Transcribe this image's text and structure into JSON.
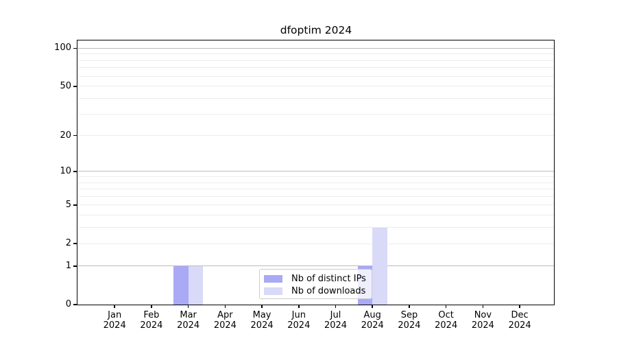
{
  "chart_data": {
    "type": "bar",
    "title": "dfoptim 2024",
    "categories": [
      "Jan",
      "Feb",
      "Mar",
      "Apr",
      "May",
      "Jun",
      "Jul",
      "Aug",
      "Sep",
      "Oct",
      "Nov",
      "Dec"
    ],
    "year": "2024",
    "series": [
      {
        "name": "Nb of distinct IPs",
        "color": "#a9a9f5",
        "values": [
          0,
          0,
          1,
          0,
          0,
          0,
          0,
          1,
          0,
          0,
          0,
          0
        ]
      },
      {
        "name": "Nb of downloads",
        "color": "#d9d9f8",
        "values": [
          0,
          0,
          1,
          0,
          0,
          0,
          0,
          3,
          0,
          0,
          0,
          0
        ]
      }
    ],
    "y_axis": {
      "tick_values": [
        0,
        1,
        2,
        5,
        10,
        20,
        50,
        100
      ],
      "tick_labels": [
        "0",
        "1",
        "2",
        "5",
        "10",
        "20",
        "50",
        "100"
      ],
      "scale": "log10(1+v)",
      "ylim": [
        0,
        115
      ],
      "major_gridlines": [
        1,
        10,
        100
      ],
      "minor_gridlines": [
        2,
        3,
        4,
        5,
        6,
        7,
        8,
        9,
        20,
        30,
        40,
        50,
        60,
        70,
        80,
        90
      ]
    },
    "x_axis": {
      "tick_label_line2": "2024"
    },
    "legend": {
      "position": "lower center",
      "entries": [
        "Nb of distinct IPs",
        "Nb of downloads"
      ]
    },
    "grid": true
  },
  "colors": {
    "bar_distinct_ips": "#a9a9f5",
    "bar_downloads": "#d9d9f8",
    "major_grid": "#bbbbbb",
    "minor_grid": "#ececec",
    "axis": "#000000",
    "legend_border": "#cbcbcb"
  }
}
